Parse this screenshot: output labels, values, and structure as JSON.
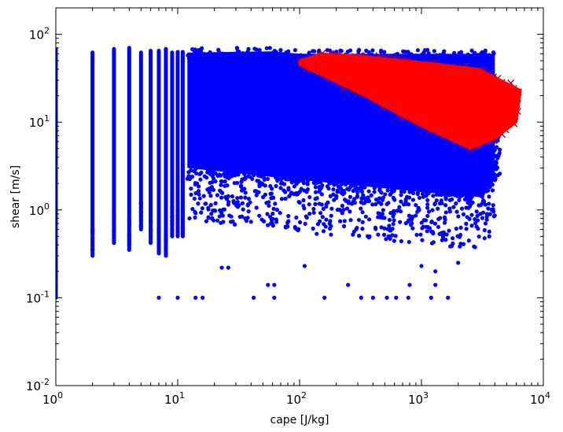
{
  "chart_data": {
    "type": "scatter",
    "title": "",
    "xlabel": "cape [J/kg]",
    "ylabel": "shear [m/s]",
    "x_scale": "log",
    "y_scale": "log",
    "xlim": [
      1,
      10000
    ],
    "ylim": [
      0.01,
      200
    ],
    "x_ticks": [
      {
        "base": "10",
        "exp": "0",
        "value": 1
      },
      {
        "base": "10",
        "exp": "1",
        "value": 10
      },
      {
        "base": "10",
        "exp": "2",
        "value": 100
      },
      {
        "base": "10",
        "exp": "3",
        "value": 1000
      },
      {
        "base": "10",
        "exp": "4",
        "value": 10000
      }
    ],
    "y_ticks": [
      {
        "base": "10",
        "exp": "-2",
        "value": 0.01
      },
      {
        "base": "10",
        "exp": "-1",
        "value": 0.1
      },
      {
        "base": "10",
        "exp": "0",
        "value": 1
      },
      {
        "base": "10",
        "exp": "1",
        "value": 10
      },
      {
        "base": "10",
        "exp": "2",
        "value": 100
      }
    ],
    "grid": false,
    "legend": "none",
    "colors": {
      "blue": "#0000ff",
      "red": "#ff0000",
      "red_edge": "#8b0050",
      "axes": "#000000"
    },
    "series": [
      {
        "color": "#0000ff",
        "marker": "dot",
        "columns": [
          {
            "x": 1,
            "ymin": 0.1,
            "ymax": 68
          },
          {
            "x": 2,
            "ymin": 0.3,
            "ymax": 62
          },
          {
            "x": 3,
            "ymin": 0.42,
            "ymax": 68
          },
          {
            "x": 4,
            "ymin": 0.35,
            "ymax": 70
          },
          {
            "x": 5,
            "ymin": 0.6,
            "ymax": 62
          },
          {
            "x": 6,
            "ymin": 0.42,
            "ymax": 65
          },
          {
            "x": 7,
            "ymin": 0.32,
            "ymax": 65
          },
          {
            "x": 8,
            "ymin": 0.3,
            "ymax": 68
          },
          {
            "x": 9,
            "ymin": 0.5,
            "ymax": 62
          },
          {
            "x": 10,
            "ymin": 0.5,
            "ymax": 63
          },
          {
            "x": 11,
            "ymin": 0.5,
            "ymax": 63
          }
        ],
        "upper_edge": [
          [
            12,
            62
          ],
          [
            60,
            64
          ],
          [
            100,
            60
          ]
        ],
        "lower_edge": [
          [
            12,
            3
          ],
          [
            100,
            2.2
          ],
          [
            1000,
            1.6
          ],
          [
            3000,
            1.4
          ],
          [
            4000,
            2.5
          ]
        ],
        "outliers": [
          [
            7,
            0.1
          ],
          [
            10,
            0.1
          ],
          [
            14,
            0.1
          ],
          [
            16,
            0.1
          ],
          [
            42,
            0.1
          ],
          [
            62,
            0.1
          ],
          [
            160,
            0.1
          ],
          [
            320,
            0.1
          ],
          [
            400,
            0.1
          ],
          [
            520,
            0.1
          ],
          [
            620,
            0.1
          ],
          [
            780,
            0.1
          ],
          [
            1200,
            0.1
          ],
          [
            1650,
            0.1
          ],
          [
            55,
            0.14
          ],
          [
            62,
            0.14
          ],
          [
            250,
            0.14
          ],
          [
            800,
            0.14
          ],
          [
            1300,
            0.14
          ],
          [
            3600,
            0.5
          ],
          [
            23,
            0.22
          ],
          [
            26,
            0.22
          ],
          [
            110,
            0.23
          ],
          [
            1000,
            0.23
          ],
          [
            1300,
            0.2
          ],
          [
            2000,
            0.25
          ]
        ]
      },
      {
        "color": "#ff0000",
        "marker": "x",
        "edge_color": "#8b0050",
        "polygon": [
          [
            100,
            50
          ],
          [
            150,
            60
          ],
          [
            300,
            57
          ],
          [
            1000,
            48
          ],
          [
            3000,
            40
          ],
          [
            6500,
            23
          ],
          [
            6000,
            10
          ],
          [
            4000,
            6.5
          ],
          [
            3000,
            5.5
          ],
          [
            2500,
            5
          ],
          [
            1000,
            9
          ],
          [
            300,
            22
          ],
          [
            100,
            45
          ]
        ]
      }
    ]
  }
}
